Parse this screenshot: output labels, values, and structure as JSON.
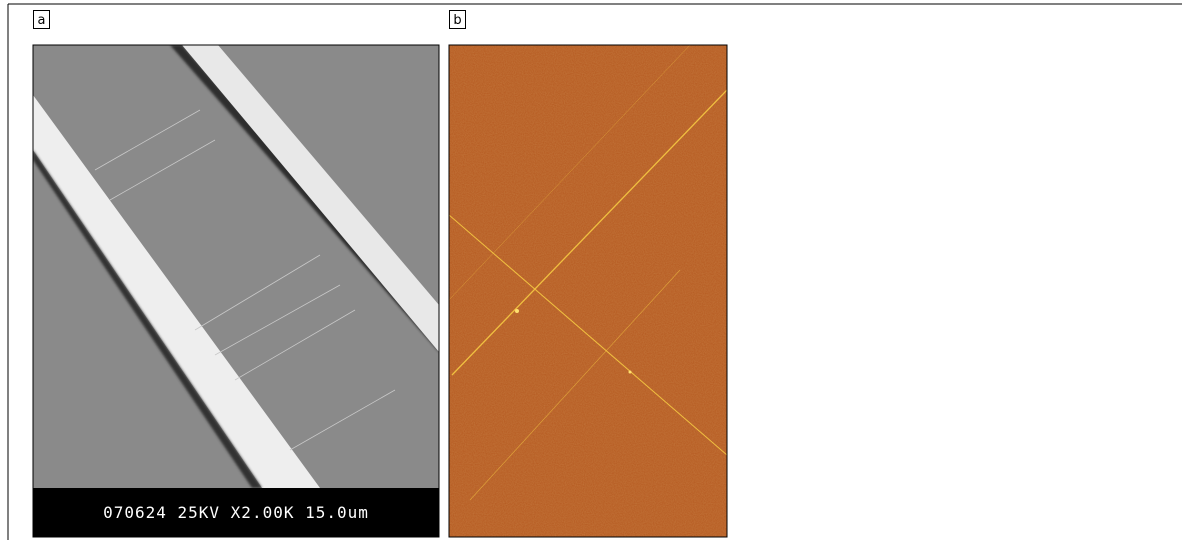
{
  "panels": [
    {
      "label": "a",
      "caption": "070624 25KV X2.00K 15.0um"
    },
    {
      "label": "b"
    }
  ]
}
